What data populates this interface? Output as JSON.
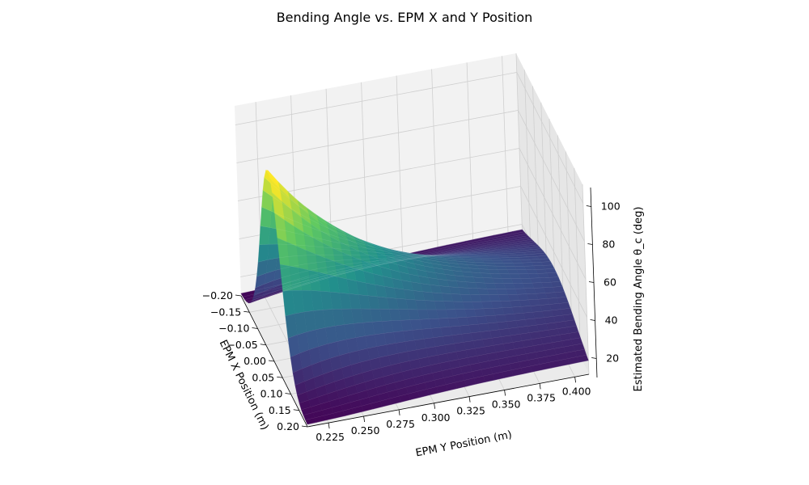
{
  "chart_data": {
    "type": "surface",
    "title": "Bending Angle vs. EPM X and Y Position",
    "xlabel": "EPM X Position (m)",
    "ylabel": "EPM Y Position (m)",
    "zlabel": "Estimated Bending Angle θ_c (deg)",
    "x_ticks": [
      "−0.20",
      "−0.15",
      "−0.10",
      "−0.05",
      "0.00",
      "0.05",
      "0.10",
      "0.15",
      "0.20"
    ],
    "y_ticks": [
      "0.225",
      "0.250",
      "0.275",
      "0.300",
      "0.325",
      "0.350",
      "0.375",
      "0.400"
    ],
    "z_ticks": [
      "20",
      "40",
      "60",
      "80",
      "100"
    ],
    "xlim": [
      -0.2,
      0.2
    ],
    "ylim": [
      0.21,
      0.41
    ],
    "zlim": [
      10,
      110
    ],
    "colormap": "viridis",
    "colors": [
      "#440154",
      "#3b528b",
      "#21918c",
      "#5ec962",
      "#fde725"
    ],
    "surface_samples": [
      {
        "x": 0.0,
        "y": 0.21,
        "z": 105
      },
      {
        "x": 0.0,
        "y": 0.25,
        "z": 70
      },
      {
        "x": 0.0,
        "y": 0.3,
        "z": 48
      },
      {
        "x": 0.0,
        "y": 0.35,
        "z": 30
      },
      {
        "x": 0.0,
        "y": 0.4,
        "z": 20
      },
      {
        "x": -0.2,
        "y": 0.21,
        "z": 12
      },
      {
        "x": 0.2,
        "y": 0.21,
        "z": 12
      },
      {
        "x": -0.2,
        "y": 0.4,
        "z": 10
      },
      {
        "x": 0.2,
        "y": 0.4,
        "z": 10
      }
    ]
  }
}
